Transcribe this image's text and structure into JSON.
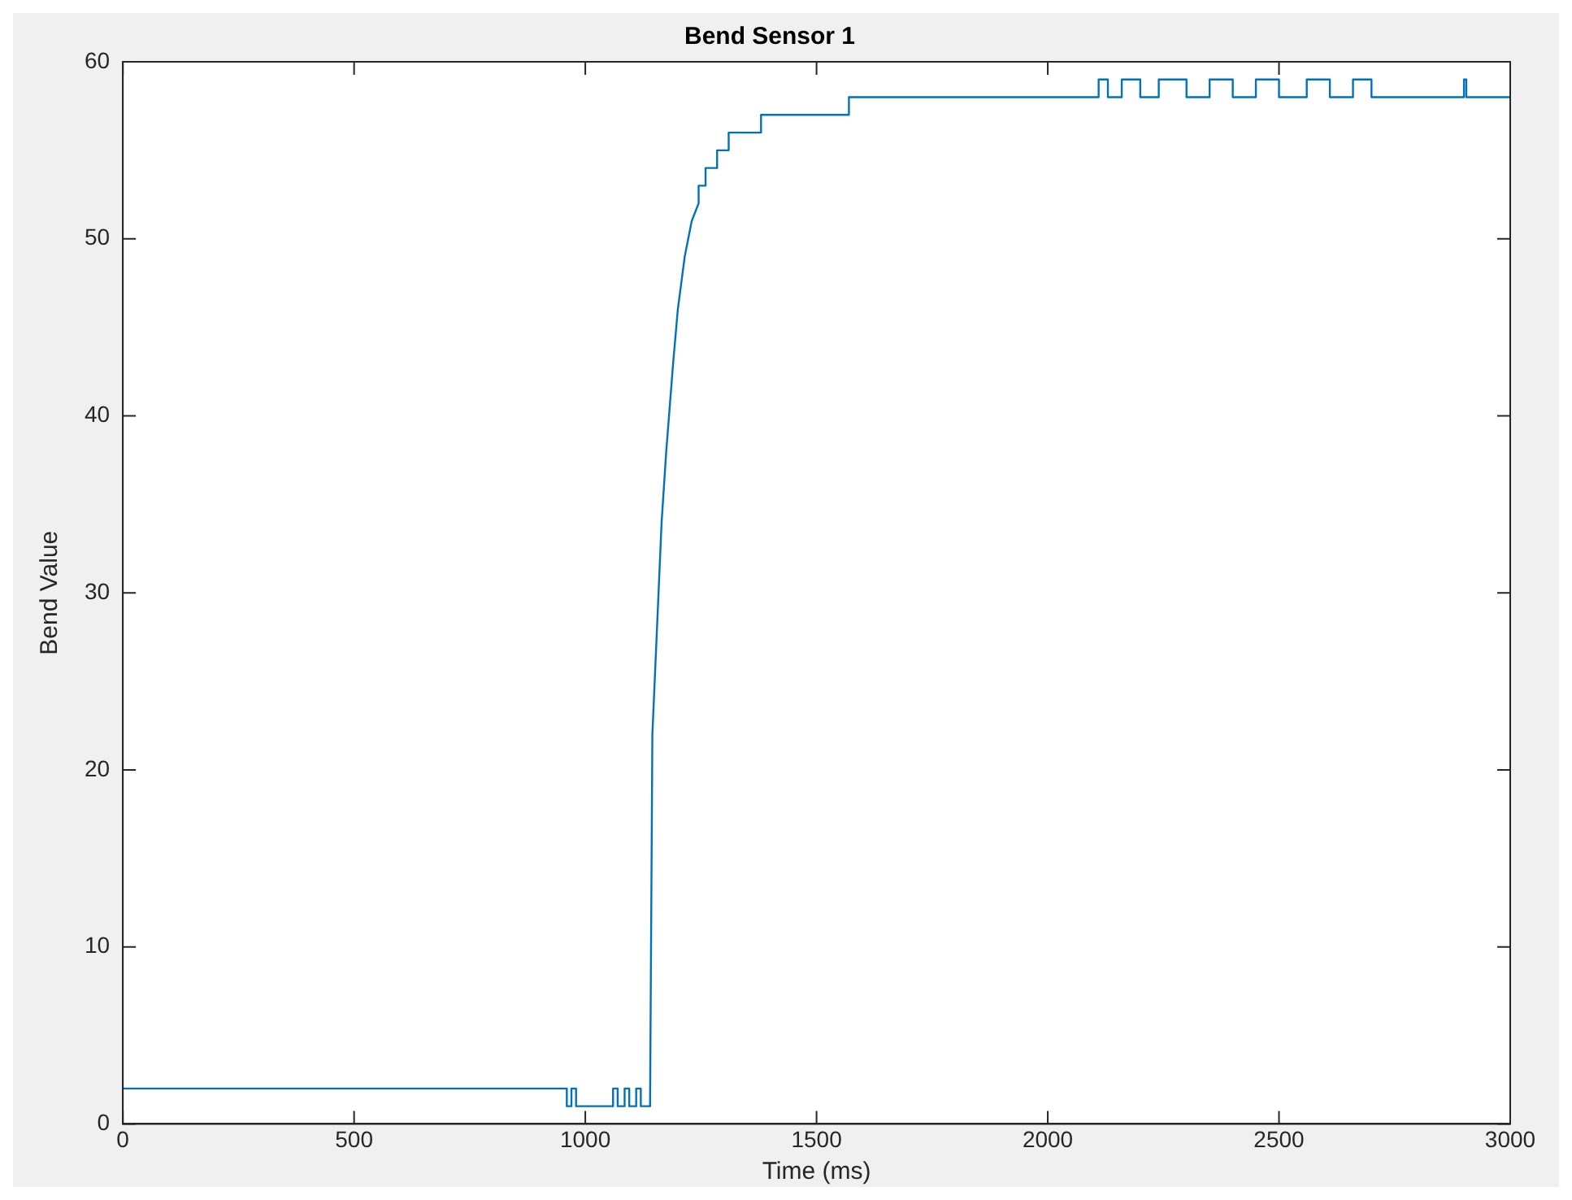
{
  "chart_data": {
    "type": "line",
    "title": "Bend Sensor 1",
    "xlabel": "Time (ms)",
    "ylabel": "Bend Value",
    "xlim": [
      0,
      3000
    ],
    "xticks": [
      0,
      500,
      1000,
      1500,
      2000,
      2500,
      3000
    ],
    "ylim": [
      0,
      60
    ],
    "yticks": [
      0,
      10,
      20,
      30,
      40,
      50,
      60
    ],
    "grid": false,
    "legend": false,
    "marker": "none",
    "line_style": "solid",
    "series": [
      {
        "color": "#0072bd",
        "x": [
          0,
          960,
          960,
          970,
          970,
          980,
          980,
          1060,
          1060,
          1070,
          1070,
          1085,
          1085,
          1095,
          1095,
          1110,
          1110,
          1120,
          1120,
          1140,
          1145,
          1155,
          1165,
          1175,
          1190,
          1200,
          1215,
          1230,
          1245,
          1245,
          1260,
          1260,
          1285,
          1285,
          1310,
          1310,
          1380,
          1380,
          1570,
          1570,
          2110,
          2110,
          2130,
          2130,
          2160,
          2160,
          2200,
          2200,
          2240,
          2240,
          2300,
          2300,
          2350,
          2350,
          2400,
          2400,
          2450,
          2450,
          2500,
          2500,
          2560,
          2560,
          2610,
          2610,
          2660,
          2660,
          2700,
          2700,
          2900,
          2900,
          2905,
          2905,
          3000
        ],
        "values": [
          2,
          2,
          1,
          1,
          2,
          2,
          1,
          1,
          2,
          2,
          1,
          1,
          2,
          2,
          1,
          1,
          2,
          2,
          1,
          1,
          22,
          28,
          34,
          38,
          43,
          46,
          49,
          51,
          52,
          53,
          53,
          54,
          54,
          55,
          55,
          56,
          56,
          57,
          57,
          58,
          58,
          59,
          59,
          58,
          58,
          59,
          59,
          58,
          58,
          59,
          59,
          58,
          58,
          59,
          59,
          58,
          58,
          59,
          59,
          58,
          58,
          59,
          59,
          58,
          58,
          59,
          59,
          58,
          58,
          59,
          59,
          58,
          58
        ]
      }
    ]
  }
}
